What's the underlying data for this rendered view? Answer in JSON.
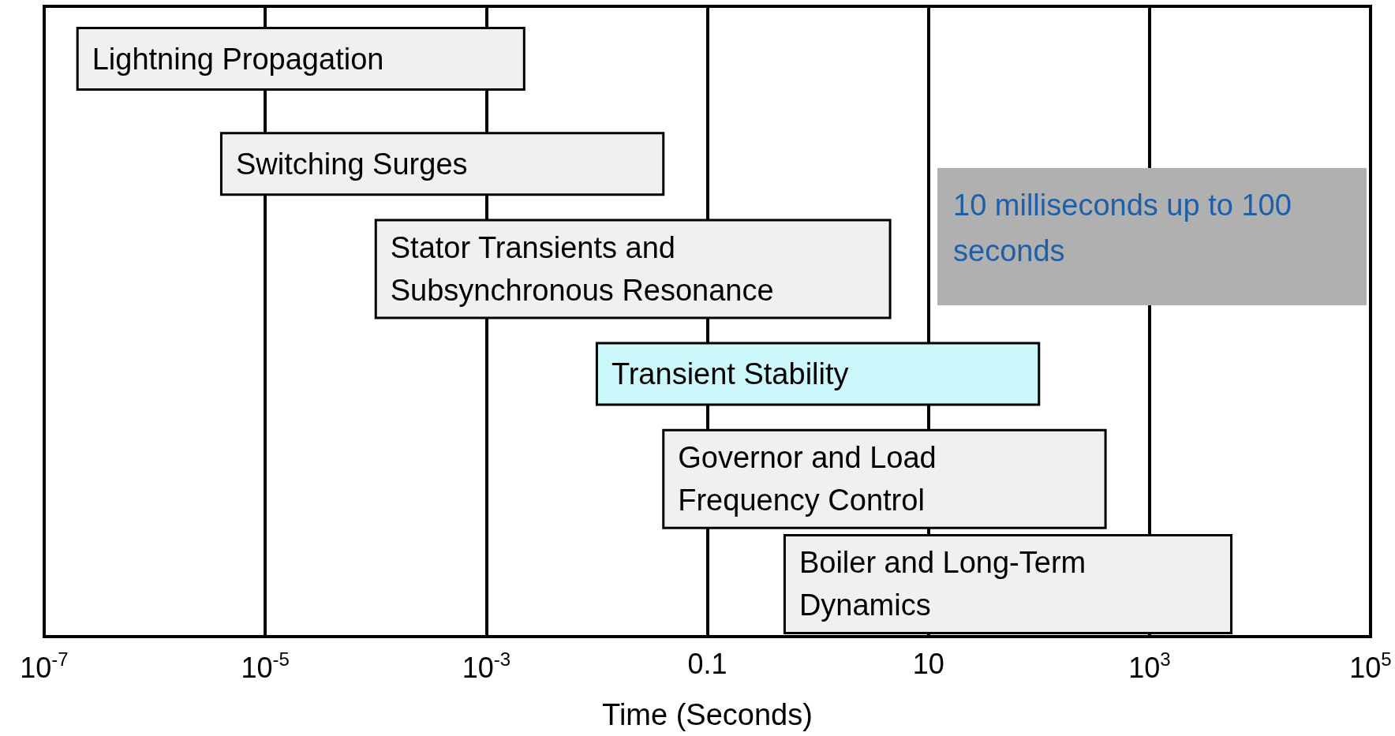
{
  "chart_data": {
    "type": "bar",
    "orientation": "horizontal",
    "xlabel": "Time (Seconds)",
    "categories": [
      "Lightning Propagation",
      "Switching Surges",
      "Stator Transients and Subsynchronous Resonance",
      "Transient Stability",
      "Governor and Load Frequency Control",
      "Boiler and Long-Term Dynamics"
    ],
    "base": [
      2e-07,
      4e-06,
      0.0001,
      0.01,
      0.04,
      0.5
    ],
    "values": [
      0.0022,
      0.04,
      4.5,
      100,
      400,
      5500
    ],
    "colors": [
      "#f0f0f0",
      "#f0f0f0",
      "#f0f0f0",
      "#ccf8fb",
      "#f0f0f0",
      "#f0f0f0"
    ],
    "log": "x",
    "xlim": [
      1e-07,
      100000
    ],
    "xticks": [
      {
        "value": 1e-07,
        "label": "10$^{-7}$"
      },
      {
        "value": 1e-05,
        "label": "10$^{-5}$"
      },
      {
        "value": 0.001,
        "label": "10$^{-3}$"
      },
      0.1,
      10,
      {
        "value": 1000,
        "label": "10$^{3}$"
      },
      {
        "value": 100000,
        "label": "10$^{5}$"
      }
    ],
    "grid": "x",
    "annotations": [
      "10 milliseconds up to 100 seconds"
    ]
  }
}
